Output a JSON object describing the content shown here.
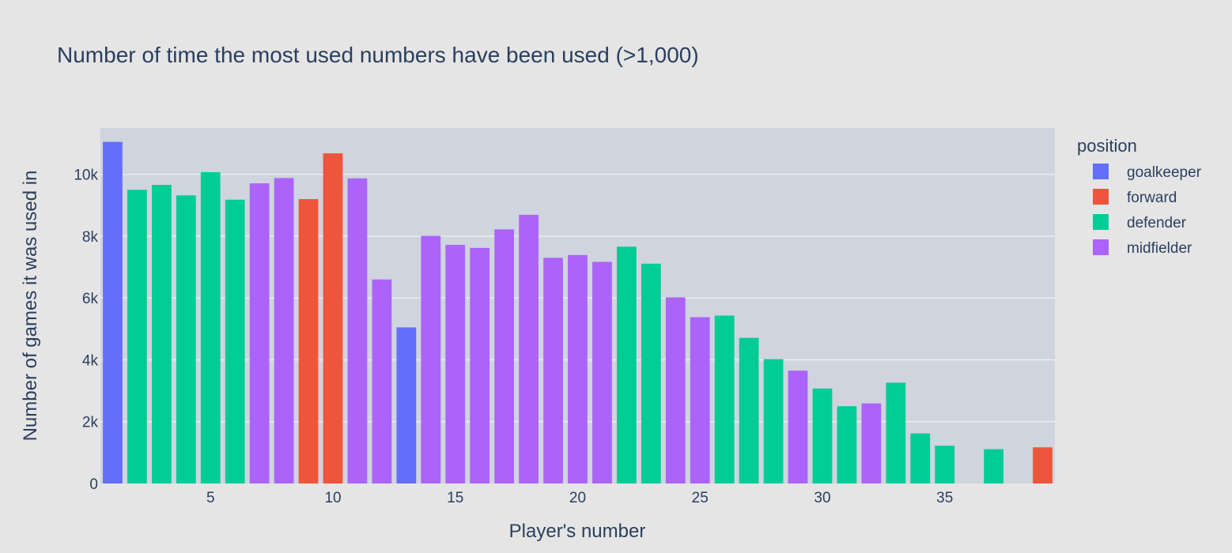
{
  "chart_data": {
    "type": "bar",
    "title": "Number of time the most used numbers have been used (>1,000)",
    "xlabel": "Player's number",
    "ylabel": "Number of games it was used in",
    "xlim": [
      0.5,
      39.5
    ],
    "ylim": [
      0,
      11500
    ],
    "x_ticks": [
      5,
      10,
      15,
      20,
      25,
      30,
      35
    ],
    "x_tick_labels": [
      "5",
      "10",
      "15",
      "20",
      "25",
      "30",
      "35"
    ],
    "y_ticks": [
      0,
      2000,
      4000,
      6000,
      8000,
      10000
    ],
    "y_tick_labels": [
      "0",
      "2k",
      "4k",
      "6k",
      "8k",
      "10k"
    ],
    "legend_title": "position",
    "legend_position": "right",
    "grid": true,
    "series": [
      {
        "name": "goalkeeper",
        "color": "#636efa",
        "x": [
          1,
          13
        ],
        "values": [
          11050,
          5050
        ]
      },
      {
        "name": "forward",
        "color": "#ef553b",
        "x": [
          9,
          10,
          39
        ],
        "values": [
          9200,
          10680,
          1170
        ]
      },
      {
        "name": "defender",
        "color": "#00cc96",
        "x": [
          2,
          3,
          4,
          5,
          6,
          22,
          23,
          26,
          27,
          28,
          30,
          31,
          33,
          34,
          35,
          37
        ],
        "values": [
          9500,
          9660,
          9320,
          10070,
          9180,
          7660,
          7110,
          5430,
          4710,
          4020,
          3070,
          2500,
          3260,
          1620,
          1220,
          1110
        ]
      },
      {
        "name": "midfielder",
        "color": "#ab63fa",
        "x": [
          7,
          8,
          11,
          12,
          14,
          15,
          16,
          17,
          18,
          19,
          20,
          21,
          24,
          25,
          29,
          32
        ],
        "values": [
          9710,
          9880,
          9870,
          6600,
          8010,
          7720,
          7620,
          8220,
          8690,
          7300,
          7390,
          7170,
          6020,
          5380,
          3650,
          2590
        ]
      }
    ]
  },
  "colors": {
    "page_background": "#e5e5e5",
    "plot_background": "#cfd4de",
    "gridline": "#ebedf1",
    "text": "#2a3f5f"
  }
}
